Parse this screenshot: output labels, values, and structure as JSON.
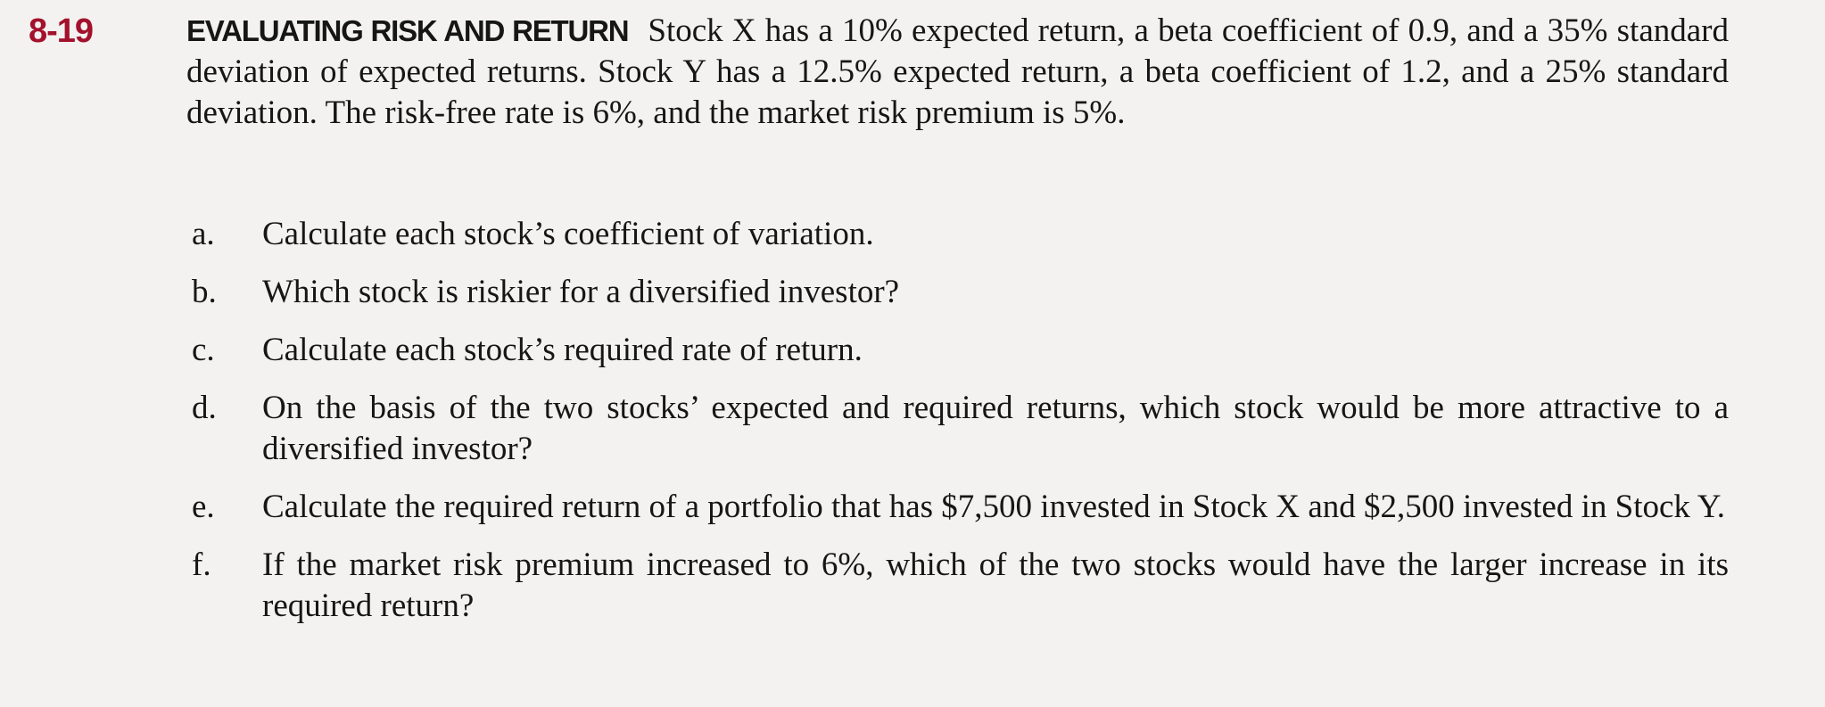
{
  "problem": {
    "number": "8-19",
    "heading": "EVALUATING RISK AND RETURN",
    "text": "Stock X has a 10% expected return, a beta coefficient of 0.9, and a 35% standard deviation of expected returns. Stock Y has a 12.5% expected return, a beta coefficient of 1.2, and a 25% standard deviation. The risk-free rate is 6%, and the market risk premium is 5%.",
    "items": [
      {
        "label": "a.",
        "text": "Calculate each stock’s coefficient of variation."
      },
      {
        "label": "b.",
        "text": "Which stock is riskier for a diversified investor?"
      },
      {
        "label": "c.",
        "text": "Calculate each stock’s required rate of return."
      },
      {
        "label": "d.",
        "text": "On the basis of the two stocks’ expected and required returns, which stock would be more attractive to a diversified investor?"
      },
      {
        "label": "e.",
        "text": "Calculate the required return of a portfolio that has $7,500 invested in Stock X and $2,500 invested in Stock Y."
      },
      {
        "label": "f.",
        "text": "If the market risk premium increased to 6%, which of the two stocks would have the larger increase in its required return?"
      }
    ]
  },
  "colors": {
    "number": "#a3112d",
    "background": "#f3f2f0",
    "text": "#161616"
  }
}
